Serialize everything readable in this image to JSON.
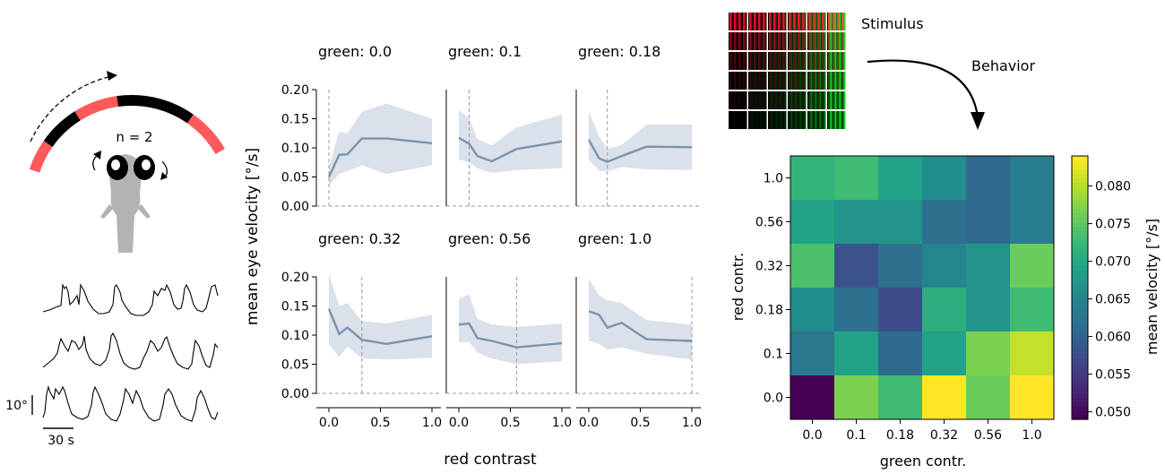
{
  "colors": {
    "line": "#7a94ad",
    "band": "#d3dce6",
    "ring_red": "#ff5a5a",
    "ring_black": "#000000",
    "fish": "#b3b3b3",
    "dash": "#9b9b9b"
  },
  "schematic": {
    "n_label": "n = 2",
    "scale_deg": "10°",
    "scale_time": "30 s"
  },
  "stimulus": {
    "label": "Stimulus",
    "behavior_label": "Behavior"
  },
  "chart_data": [
    {
      "type": "line",
      "panel_titles": [
        "green: 0.0",
        "green: 0.1",
        "green: 0.18",
        "green: 0.32",
        "green: 0.56",
        "green: 1.0"
      ],
      "xlabel": "red contrast",
      "ylabel": "mean eye velocity [°/s]",
      "ylim": [
        0,
        0.2
      ],
      "xlim": [
        0,
        1
      ],
      "yticks": [
        "0.00",
        "0.05",
        "0.10",
        "0.15",
        "0.20"
      ],
      "xticks": [
        "0.0",
        "0.5",
        "1.0"
      ],
      "x": [
        0.0,
        0.1,
        0.18,
        0.32,
        0.56,
        1.0
      ],
      "series": [
        {
          "green": 0.0,
          "mean": [
            0.05,
            0.088,
            0.089,
            0.116,
            0.116,
            0.108
          ],
          "lower": [
            0.035,
            0.055,
            0.06,
            0.07,
            0.055,
            0.07
          ],
          "upper": [
            0.068,
            0.128,
            0.125,
            0.162,
            0.176,
            0.15
          ]
        },
        {
          "green": 0.1,
          "mean": [
            0.117,
            0.107,
            0.086,
            0.077,
            0.098,
            0.111
          ],
          "lower": [
            0.08,
            0.075,
            0.065,
            0.057,
            0.062,
            0.065
          ],
          "upper": [
            0.165,
            0.15,
            0.115,
            0.104,
            0.135,
            0.157
          ]
        },
        {
          "green": 0.18,
          "mean": [
            0.114,
            0.082,
            0.076,
            0.086,
            0.102,
            0.101
          ],
          "lower": [
            0.08,
            0.06,
            0.06,
            0.067,
            0.063,
            0.062
          ],
          "upper": [
            0.162,
            0.12,
            0.098,
            0.105,
            0.14,
            0.14
          ]
        },
        {
          "green": 0.32,
          "mean": [
            0.145,
            0.102,
            0.113,
            0.092,
            0.085,
            0.098
          ],
          "lower": [
            0.085,
            0.062,
            0.08,
            0.06,
            0.058,
            0.061
          ],
          "upper": [
            0.205,
            0.15,
            0.155,
            0.124,
            0.12,
            0.135
          ]
        },
        {
          "green": 0.56,
          "mean": [
            0.118,
            0.12,
            0.095,
            0.09,
            0.079,
            0.086
          ],
          "lower": [
            0.088,
            0.088,
            0.07,
            0.06,
            0.05,
            0.055
          ],
          "upper": [
            0.162,
            0.17,
            0.128,
            0.118,
            0.114,
            0.12
          ]
        },
        {
          "green": 1.0,
          "mean": [
            0.141,
            0.135,
            0.113,
            0.121,
            0.093,
            0.09
          ],
          "lower": [
            0.09,
            0.085,
            0.075,
            0.079,
            0.068,
            0.058
          ],
          "upper": [
            0.197,
            0.168,
            0.16,
            0.155,
            0.126,
            0.118
          ]
        }
      ]
    },
    {
      "type": "heatmap",
      "xlabel": "green contr.",
      "ylabel": "red contr.",
      "x_categories": [
        "0.0",
        "0.1",
        "0.18",
        "0.32",
        "0.56",
        "1.0"
      ],
      "y_categories": [
        "1.0",
        "0.56",
        "0.32",
        "0.18",
        "0.1",
        "0.0"
      ],
      "values": [
        [
          0.072,
          0.073,
          0.069,
          0.066,
          0.061,
          0.064
        ],
        [
          0.069,
          0.067,
          0.067,
          0.062,
          0.061,
          0.064
        ],
        [
          0.074,
          0.058,
          0.062,
          0.065,
          0.067,
          0.076
        ],
        [
          0.066,
          0.062,
          0.057,
          0.071,
          0.067,
          0.073
        ],
        [
          0.063,
          0.069,
          0.061,
          0.069,
          0.077,
          0.081
        ],
        [
          0.049,
          0.077,
          0.073,
          0.084,
          0.076,
          0.084
        ]
      ],
      "colorbar": {
        "label": "mean velocity [°/s]",
        "ticks": [
          "0.050",
          "0.055",
          "0.060",
          "0.065",
          "0.070",
          "0.075",
          "0.080"
        ],
        "range": [
          0.049,
          0.084
        ]
      }
    }
  ]
}
